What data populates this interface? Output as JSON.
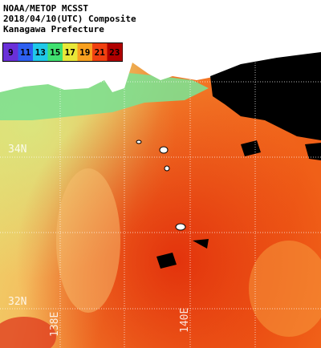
{
  "header": {
    "lines": [
      "NOAA/METOP MCSST",
      "2018/04/10(UTC) Composite",
      "Kanagawa Prefecture"
    ]
  },
  "colorbar": {
    "labels": [
      9,
      11,
      13,
      15,
      17,
      19,
      21,
      23
    ],
    "colors": [
      "#6a30d8",
      "#2e60f0",
      "#20c8e8",
      "#40e070",
      "#e8e838",
      "#f8a020",
      "#f04010",
      "#b00000"
    ]
  },
  "grid": {
    "lat_labels": [
      "34N",
      "32N"
    ],
    "lon_labels": [
      "138E",
      "140E"
    ]
  }
}
